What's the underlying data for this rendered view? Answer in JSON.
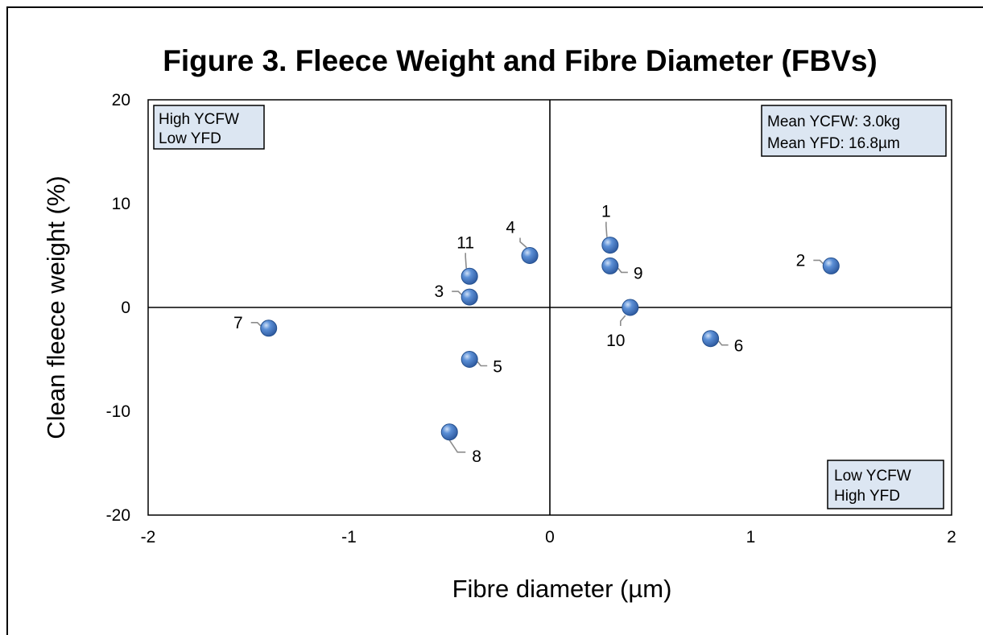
{
  "chart_data": {
    "type": "scatter",
    "title": "Figure 3.  Fleece Weight and Fibre Diameter (FBVs)",
    "xlabel": "Fibre diameter (µm)",
    "ylabel": "Clean fleece weight (%)",
    "xlim": [
      -2,
      2
    ],
    "ylim": [
      -20,
      20
    ],
    "xticks": [
      -2,
      -1,
      0,
      1,
      2
    ],
    "yticks": [
      -20,
      -10,
      0,
      10,
      20
    ],
    "marker_color": "#3d6fb6",
    "points": [
      {
        "label": "1",
        "x": 0.3,
        "y": 6,
        "label_pos": "above"
      },
      {
        "label": "2",
        "x": 1.4,
        "y": 4,
        "label_pos": "left"
      },
      {
        "label": "3",
        "x": -0.4,
        "y": 1,
        "label_pos": "left"
      },
      {
        "label": "4",
        "x": -0.1,
        "y": 5,
        "label_pos": "above-left"
      },
      {
        "label": "5",
        "x": -0.4,
        "y": -5,
        "label_pos": "right"
      },
      {
        "label": "6",
        "x": 0.8,
        "y": -3,
        "label_pos": "right"
      },
      {
        "label": "7",
        "x": -1.4,
        "y": -2,
        "label_pos": "left"
      },
      {
        "label": "8",
        "x": -0.5,
        "y": -12,
        "label_pos": "below-right"
      },
      {
        "label": "9",
        "x": 0.3,
        "y": 4,
        "label_pos": "right"
      },
      {
        "label": "10",
        "x": 0.4,
        "y": 0,
        "label_pos": "below"
      },
      {
        "label": "11",
        "x": -0.4,
        "y": 3,
        "label_pos": "above"
      }
    ],
    "annotations": {
      "top_left": [
        "High YCFW",
        "Low YFD"
      ],
      "top_right": [
        "Mean YCFW: 3.0kg",
        "Mean YFD: 16.8µm"
      ],
      "bottom_right": [
        "Low YCFW",
        "High YFD"
      ]
    },
    "annotation_fill": "#dce6f2"
  }
}
